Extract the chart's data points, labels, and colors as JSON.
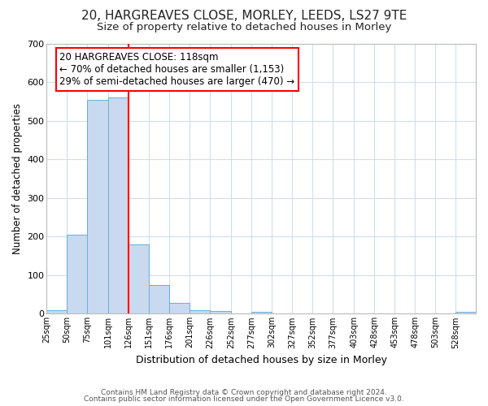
{
  "title1": "20, HARGREAVES CLOSE, MORLEY, LEEDS, LS27 9TE",
  "title2": "Size of property relative to detached houses in Morley",
  "xlabel": "Distribution of detached houses by size in Morley",
  "ylabel": "Number of detached properties",
  "bar_edges": [
    25,
    50,
    75,
    101,
    126,
    151,
    176,
    201,
    226,
    252,
    277,
    302,
    327,
    352,
    377,
    403,
    428,
    453,
    478,
    503,
    528,
    553
  ],
  "bar_heights": [
    10,
    205,
    555,
    560,
    180,
    75,
    28,
    10,
    8,
    0,
    5,
    0,
    0,
    0,
    0,
    0,
    0,
    0,
    0,
    0,
    5
  ],
  "bar_color": "#c8d9f0",
  "bar_edge_color": "#6baed6",
  "red_line_x": 126,
  "ylim": [
    0,
    700
  ],
  "annotation_text": "20 HARGREAVES CLOSE: 118sqm\n← 70% of detached houses are smaller (1,153)\n29% of semi-detached houses are larger (470) →",
  "annotation_box_color": "white",
  "annotation_box_edge_color": "red",
  "footer1": "Contains HM Land Registry data © Crown copyright and database right 2024.",
  "footer2": "Contains public sector information licensed under the Open Government Licence v3.0.",
  "bg_color": "#ffffff",
  "plot_bg_color": "#ffffff",
  "grid_color": "#d0ddf0",
  "title1_fontsize": 11,
  "title2_fontsize": 9.5,
  "tick_labels": [
    "25sqm",
    "50sqm",
    "75sqm",
    "101sqm",
    "126sqm",
    "151sqm",
    "176sqm",
    "201sqm",
    "226sqm",
    "252sqm",
    "277sqm",
    "302sqm",
    "327sqm",
    "352sqm",
    "377sqm",
    "403sqm",
    "428sqm",
    "453sqm",
    "478sqm",
    "503sqm",
    "528sqm"
  ]
}
